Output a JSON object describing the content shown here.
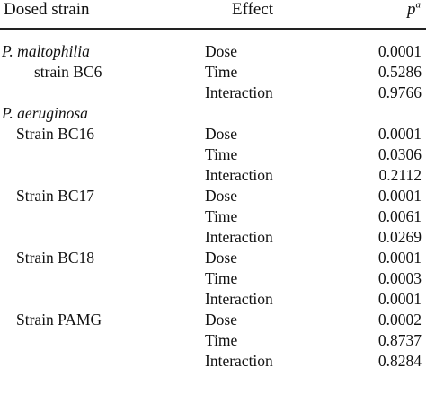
{
  "table": {
    "headers": {
      "strain": "Dosed strain",
      "effect": "Effect",
      "p": "p",
      "p_sup": "a"
    },
    "rows": [
      {
        "organism": "P. maltophilia",
        "strain": "",
        "effect": "Dose",
        "p": "0.0001"
      },
      {
        "organism": "",
        "strain": "strain BC6",
        "effect": "Time",
        "p": "0.5286"
      },
      {
        "organism": "",
        "strain": "",
        "effect": "Interaction",
        "p": "0.9766"
      },
      {
        "organism": "P. aeruginosa",
        "strain": "",
        "effect": "",
        "p": ""
      },
      {
        "organism": "",
        "strain": "Strain BC16",
        "effect": "Dose",
        "p": "0.0001"
      },
      {
        "organism": "",
        "strain": "",
        "effect": "Time",
        "p": "0.0306"
      },
      {
        "organism": "",
        "strain": "",
        "effect": "Interaction",
        "p": "0.2112"
      },
      {
        "organism": "",
        "strain": "Strain BC17",
        "effect": "Dose",
        "p": "0.0001"
      },
      {
        "organism": "",
        "strain": "",
        "effect": "Time",
        "p": "0.0061"
      },
      {
        "organism": "",
        "strain": "",
        "effect": "Interaction",
        "p": "0.0269"
      },
      {
        "organism": "",
        "strain": "Strain BC18",
        "effect": "Dose",
        "p": "0.0001"
      },
      {
        "organism": "",
        "strain": "",
        "effect": "Time",
        "p": "0.0003"
      },
      {
        "organism": "",
        "strain": "",
        "effect": "Interaction",
        "p": "0.0001"
      },
      {
        "organism": "",
        "strain": "Strain PAMG",
        "effect": "Dose",
        "p": "0.0002"
      },
      {
        "organism": "",
        "strain": "",
        "effect": "Time",
        "p": "0.8737"
      },
      {
        "organism": "",
        "strain": "",
        "effect": "Interaction",
        "p": "0.8284"
      }
    ]
  }
}
